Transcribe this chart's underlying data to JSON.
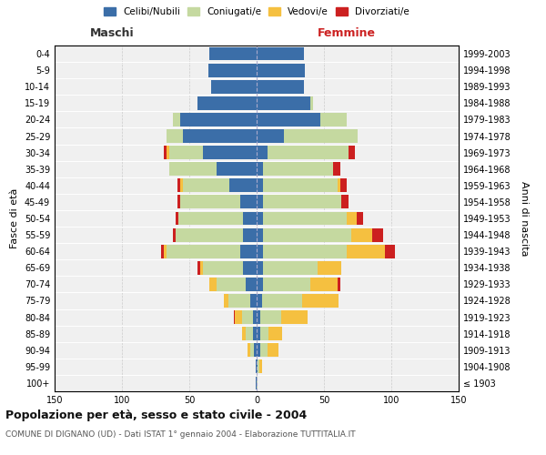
{
  "age_groups": [
    "100+",
    "95-99",
    "90-94",
    "85-89",
    "80-84",
    "75-79",
    "70-74",
    "65-69",
    "60-64",
    "55-59",
    "50-54",
    "45-49",
    "40-44",
    "35-39",
    "30-34",
    "25-29",
    "20-24",
    "15-19",
    "10-14",
    "5-9",
    "0-4"
  ],
  "birth_years": [
    "≤ 1903",
    "1904-1908",
    "1909-1913",
    "1914-1918",
    "1919-1923",
    "1924-1928",
    "1929-1933",
    "1934-1938",
    "1939-1943",
    "1944-1948",
    "1949-1953",
    "1954-1958",
    "1959-1963",
    "1964-1968",
    "1969-1973",
    "1974-1978",
    "1979-1983",
    "1984-1988",
    "1989-1993",
    "1994-1998",
    "1999-2003"
  ],
  "male": {
    "celibe": [
      1,
      1,
      2,
      3,
      3,
      5,
      8,
      10,
      12,
      10,
      10,
      12,
      20,
      30,
      40,
      55,
      57,
      44,
      34,
      36,
      35
    ],
    "coniugato": [
      0,
      0,
      3,
      5,
      8,
      16,
      22,
      30,
      55,
      50,
      48,
      45,
      35,
      35,
      25,
      12,
      5,
      0,
      0,
      0,
      0
    ],
    "vedovo": [
      0,
      0,
      2,
      3,
      5,
      3,
      5,
      2,
      2,
      0,
      0,
      0,
      2,
      0,
      2,
      0,
      0,
      0,
      0,
      0,
      0
    ],
    "divorziato": [
      0,
      0,
      0,
      0,
      1,
      0,
      0,
      2,
      2,
      2,
      2,
      2,
      2,
      0,
      2,
      0,
      0,
      0,
      0,
      0,
      0
    ]
  },
  "female": {
    "nubile": [
      0,
      1,
      3,
      3,
      3,
      4,
      5,
      5,
      5,
      5,
      5,
      5,
      5,
      5,
      8,
      20,
      47,
      40,
      35,
      36,
      35
    ],
    "coniugata": [
      1,
      1,
      5,
      6,
      15,
      30,
      35,
      40,
      62,
      65,
      62,
      58,
      55,
      52,
      60,
      55,
      20,
      2,
      0,
      0,
      0
    ],
    "vedova": [
      0,
      2,
      8,
      10,
      20,
      27,
      20,
      18,
      28,
      16,
      7,
      0,
      2,
      0,
      0,
      0,
      0,
      0,
      0,
      0,
      0
    ],
    "divorziata": [
      0,
      0,
      0,
      0,
      0,
      0,
      2,
      0,
      8,
      8,
      5,
      5,
      5,
      5,
      5,
      0,
      0,
      0,
      0,
      0,
      0
    ]
  },
  "colors": {
    "celibe_nubile": "#3B6EA8",
    "coniugato": "#C5D9A0",
    "vedovo": "#F5C040",
    "divorziato": "#CC2020"
  },
  "title": "Popolazione per età, sesso e stato civile - 2004",
  "subtitle": "COMUNE DI DIGNANO (UD) - Dati ISTAT 1° gennaio 2004 - Elaborazione TUTTITALIA.IT",
  "xlabel_left": "Maschi",
  "xlabel_right": "Femmine",
  "ylabel_left": "Fasce di età",
  "ylabel_right": "Anni di nascita",
  "xlim": 150,
  "background_color": "#ffffff",
  "grid_color": "#cccccc",
  "legend_labels": [
    "Celibi/Nubili",
    "Coniugati/e",
    "Vedovi/e",
    "Divorziati/e"
  ]
}
